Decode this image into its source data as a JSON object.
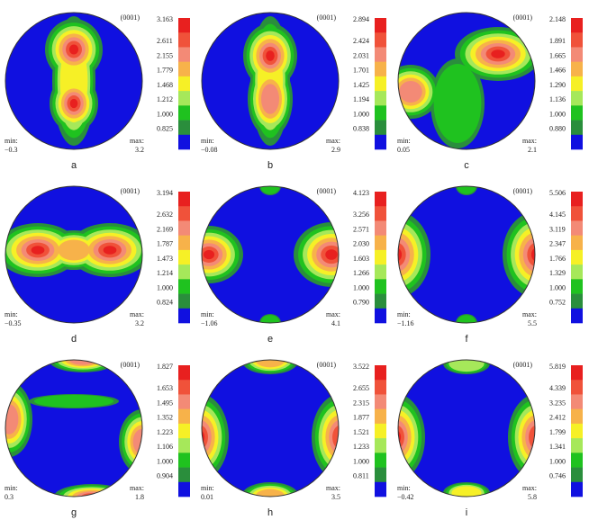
{
  "panels": [
    {
      "label": "a",
      "pole": "(0001)",
      "min_label": "min:",
      "min": "−0.3",
      "max_label": "max:",
      "max": "3.2",
      "levels": [
        "3.163",
        "2.611",
        "2.155",
        "1.779",
        "1.468",
        "1.212",
        "1.000",
        "0.825"
      ]
    },
    {
      "label": "b",
      "pole": "(0001)",
      "min_label": "min:",
      "min": "−0.08",
      "max_label": "max:",
      "max": "2.9",
      "levels": [
        "2.894",
        "2.424",
        "2.031",
        "1.701",
        "1.425",
        "1.194",
        "1.000",
        "0.838"
      ]
    },
    {
      "label": "c",
      "pole": "(0001)",
      "min_label": "min:",
      "min": "0.05",
      "max_label": "max:",
      "max": "2.1",
      "levels": [
        "2.148",
        "1.891",
        "1.665",
        "1.466",
        "1.290",
        "1.136",
        "1.000",
        "0.880"
      ]
    },
    {
      "label": "d",
      "pole": "(0001)",
      "min_label": "min:",
      "min": "−0.35",
      "max_label": "max:",
      "max": "3.2",
      "levels": [
        "3.194",
        "2.632",
        "2.169",
        "1.787",
        "1.473",
        "1.214",
        "1.000",
        "0.824"
      ]
    },
    {
      "label": "e",
      "pole": "(0001)",
      "min_label": "min:",
      "min": "−1.06",
      "max_label": "max:",
      "max": "4.1",
      "levels": [
        "4.123",
        "3.256",
        "2.571",
        "2.030",
        "1.603",
        "1.266",
        "1.000",
        "0.790"
      ]
    },
    {
      "label": "f",
      "pole": "(0001)",
      "min_label": "min:",
      "min": "−1.16",
      "max_label": "max:",
      "max": "5.5",
      "levels": [
        "5.506",
        "4.145",
        "3.119",
        "2.347",
        "1.766",
        "1.329",
        "1.000",
        "0.752"
      ]
    },
    {
      "label": "g",
      "pole": "(0001)",
      "min_label": "min:",
      "min": "0.3",
      "max_label": "max:",
      "max": "1.8",
      "levels": [
        "1.827",
        "1.653",
        "1.495",
        "1.352",
        "1.223",
        "1.106",
        "1.000",
        "0.904"
      ]
    },
    {
      "label": "h",
      "pole": "(0001)",
      "min_label": "min:",
      "min": "0.01",
      "max_label": "max:",
      "max": "3.5",
      "levels": [
        "3.522",
        "2.655",
        "2.315",
        "1.877",
        "1.521",
        "1.233",
        "1.000",
        "0.811"
      ]
    },
    {
      "label": "i",
      "pole": "(0001)",
      "min_label": "min:",
      "min": "−0.42",
      "max_label": "max:",
      "max": "5.8",
      "levels": [
        "5.819",
        "4.339",
        "3.235",
        "2.412",
        "1.799",
        "1.341",
        "1.000",
        "0.746"
      ]
    }
  ]
}
